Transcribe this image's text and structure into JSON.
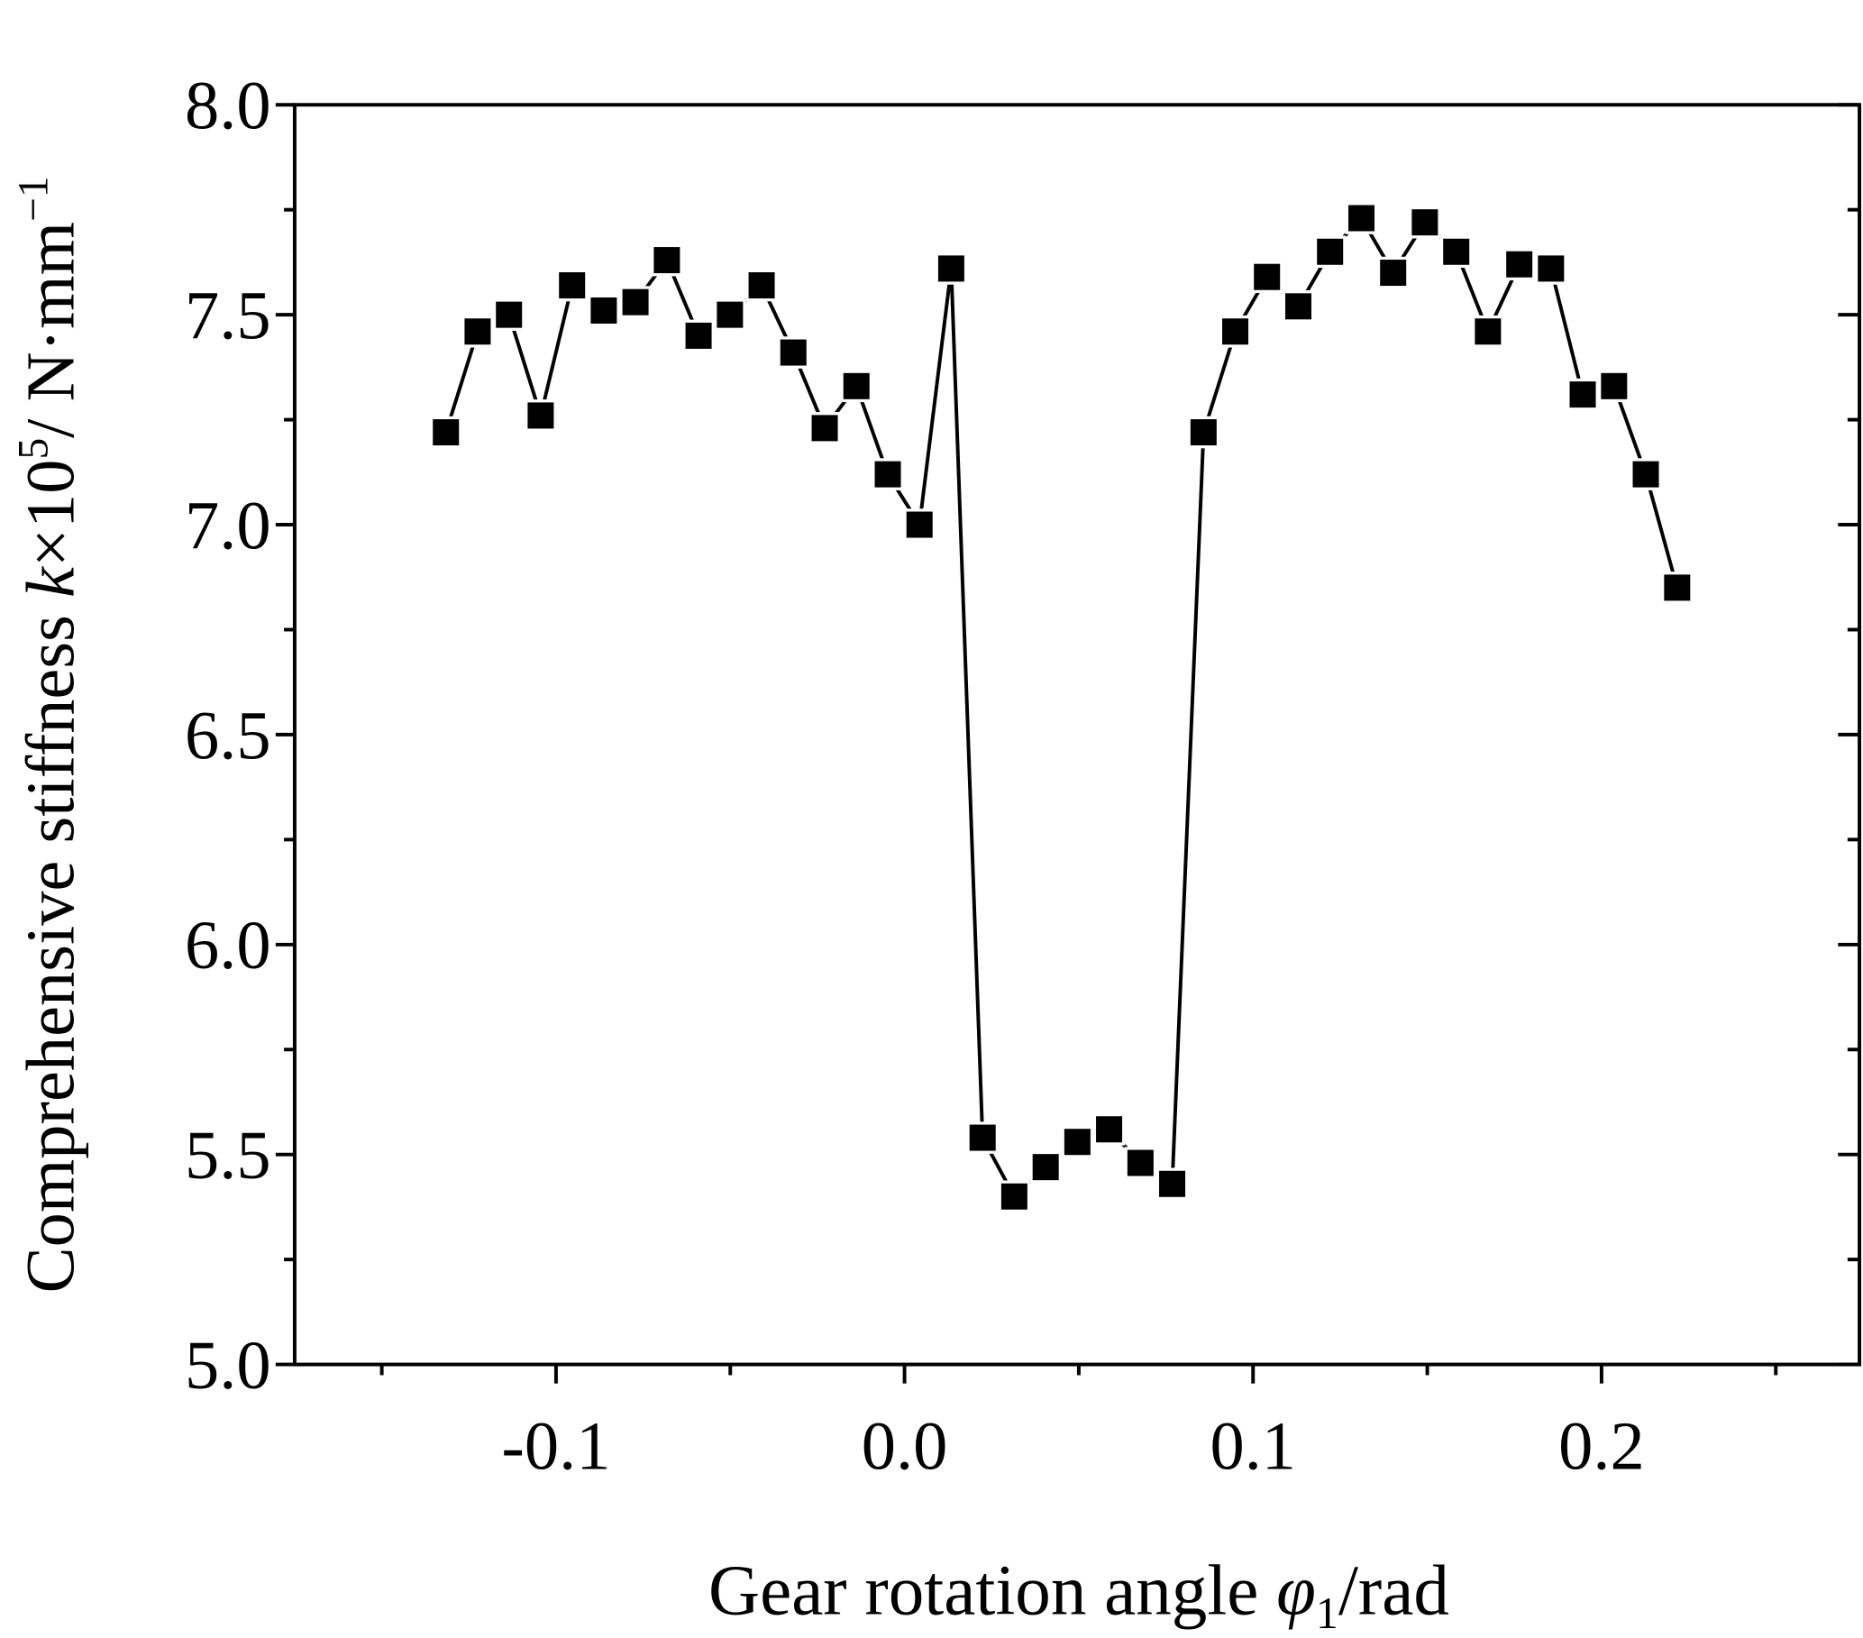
{
  "chart_data": {
    "type": "line",
    "title": "",
    "xlabel_parts": {
      "pre": "Gear rotation angle ",
      "sym": "φ",
      "sub": "1",
      "post": "/rad"
    },
    "ylabel_parts": {
      "pre": "Comprehensive stiffness ",
      "sym": "k",
      "mid": "×10",
      "sup": "5",
      "unit": "/ N·mm",
      "sup2": "−1"
    },
    "xlim": [
      -0.175,
      0.274
    ],
    "ylim": [
      5.0,
      8.0
    ],
    "xticks": [
      -0.1,
      0.0,
      0.1,
      0.2
    ],
    "xtick_labels": [
      "-0.1",
      "0.0",
      "0.1",
      "0.2"
    ],
    "xminor": [
      -0.15,
      -0.05,
      0.05,
      0.15,
      0.25
    ],
    "yticks": [
      5.0,
      5.5,
      6.0,
      6.5,
      7.0,
      7.5,
      8.0
    ],
    "ytick_labels": [
      "5.0",
      "5.5",
      "6.0",
      "6.5",
      "7.0",
      "7.5",
      "8.0"
    ],
    "yminor": [
      5.25,
      5.75,
      6.25,
      6.75,
      7.25,
      7.75
    ],
    "grid": false,
    "legend": "none",
    "marker": "square",
    "color": "#000000",
    "series": [
      {
        "name": "k",
        "x": [
          -0.1316,
          -0.1225,
          -0.1135,
          -0.1044,
          -0.0954,
          -0.0863,
          -0.0772,
          -0.0682,
          -0.0591,
          -0.0501,
          -0.041,
          -0.0319,
          -0.0229,
          -0.0138,
          -0.0048,
          0.0043,
          0.0134,
          0.0224,
          0.0315,
          0.0405,
          0.0496,
          0.0587,
          0.0677,
          0.0768,
          0.0858,
          0.0949,
          0.104,
          0.113,
          0.1221,
          0.1311,
          0.1402,
          0.1493,
          0.1583,
          0.1674,
          0.1764,
          0.1855,
          0.1946,
          0.2036,
          0.2127,
          0.2217
        ],
        "y": [
          7.22,
          7.46,
          7.5,
          7.26,
          7.57,
          7.51,
          7.53,
          7.63,
          7.45,
          7.5,
          7.57,
          7.41,
          7.23,
          7.33,
          7.12,
          7.0,
          7.61,
          5.54,
          5.4,
          5.47,
          5.53,
          5.56,
          5.48,
          5.43,
          7.22,
          7.46,
          7.59,
          7.52,
          7.65,
          7.73,
          7.6,
          7.72,
          7.65,
          7.46,
          7.62,
          7.61,
          7.31,
          7.33,
          7.12,
          6.85
        ]
      }
    ]
  }
}
